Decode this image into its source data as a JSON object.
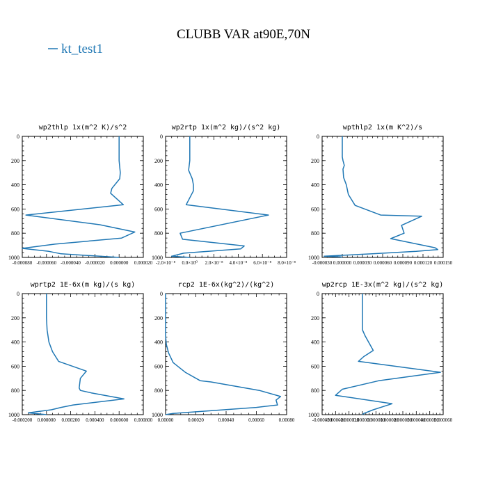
{
  "figure": {
    "title": "CLUBB VAR at90E,70N",
    "legend": "kt_test1",
    "line_color": "#1f77b4"
  },
  "chart_data": [
    {
      "type": "line",
      "title": "wp2thlp  1x(m^2 K)/s^2",
      "xlim": [
        -8e-05,
        2e-05
      ],
      "ylim": [
        1000,
        0
      ],
      "yticks": [
        0,
        200,
        400,
        600,
        800,
        1000
      ],
      "xtick_values": [
        -8e-05,
        -6e-05,
        -4e-05,
        -2e-05,
        0,
        2e-05
      ],
      "xtick_labels": [
        "-0.000080",
        "-0.000060",
        "-0.000040",
        "-0.000020",
        "0.000000",
        "0.000020"
      ],
      "series": [
        {
          "name": "kt_test1",
          "x": [
            0,
            0,
            0,
            1e-06,
            5e-07,
            -6e-06,
            -7e-06,
            3.5e-06,
            -7.7e-05,
            -1.6e-05,
            1.3e-05,
            2e-06,
            -5.3e-05,
            -8e-05,
            -5.8e-05,
            -4.8e-05,
            -1.6e-05,
            0
          ],
          "y": [
            0,
            100,
            200,
            300,
            350,
            430,
            470,
            565,
            650,
            730,
            790,
            840,
            890,
            925,
            950,
            970,
            990,
            1000
          ]
        }
      ]
    },
    {
      "type": "line",
      "title": "wp2rtp  1x(m^2 kg)/(s^2 kg)",
      "xlim": [
        -2e-08,
        8e-08
      ],
      "ylim": [
        1000,
        0
      ],
      "yticks": [
        0,
        200,
        400,
        600,
        800,
        1000
      ],
      "xtick_values": [
        -2e-08,
        0,
        2e-08,
        4e-08,
        6e-08,
        8e-08
      ],
      "xtick_labels": [
        "-2.0×10⁻⁸",
        "0.0×10⁰",
        "2.0×10⁻⁸",
        "4.0×10⁻⁸",
        "6.0×10⁻⁸",
        "8.0×10⁻⁸"
      ],
      "series": [
        {
          "name": "kt_test1",
          "x": [
            0,
            0,
            0,
            -1e-09,
            2e-09,
            3e-09,
            3e-09,
            -3e-09,
            6.5e-08,
            -8e-09,
            -6e-09,
            4.5e-08,
            4.2e-08,
            -5e-09,
            -1.5e-08,
            0
          ],
          "y": [
            0,
            100,
            200,
            280,
            350,
            400,
            450,
            565,
            650,
            800,
            850,
            905,
            930,
            965,
            990,
            1000
          ]
        }
      ]
    },
    {
      "type": "line",
      "title": "wpthlp2  1x(m K^2)/s",
      "xlim": [
        -3e-05,
        0.00015
      ],
      "ylim": [
        1000,
        0
      ],
      "yticks": [
        0,
        200,
        400,
        600,
        800,
        1000
      ],
      "xtick_values": [
        -3e-05,
        0,
        3e-05,
        6e-05,
        9e-05,
        0.00012,
        0.00015
      ],
      "xtick_labels": [
        "-0.000030",
        "0.000000",
        "0.000030",
        "0.000060",
        "0.000090",
        "0.000120",
        "0.000150"
      ],
      "series": [
        {
          "name": "kt_test1",
          "x": [
            0,
            0,
            0,
            1e-06,
            3e-06,
            1e-06,
            2e-06,
            6e-06,
            9e-06,
            1.9e-05,
            5.7e-05,
            0.000118,
            8.8e-05,
            9.2e-05,
            7.2e-05,
            0.000138,
            0.000142,
            0.00011,
            4.5e-05,
            -2.7e-05,
            -3e-06,
            0
          ],
          "y": [
            0,
            100,
            170,
            200,
            240,
            270,
            340,
            400,
            480,
            570,
            650,
            660,
            735,
            800,
            845,
            920,
            935,
            950,
            970,
            990,
            995,
            1000
          ]
        }
      ]
    },
    {
      "type": "line",
      "title": "wprtp2  1E-6x(m kg)/(s kg)",
      "xlim": [
        -0.0002,
        0.0008
      ],
      "ylim": [
        1000,
        0
      ],
      "yticks": [
        0,
        200,
        400,
        600,
        800,
        1000
      ],
      "xtick_values": [
        -0.0002,
        0,
        0.0002,
        0.0004,
        0.0006,
        0.0008
      ],
      "xtick_labels": [
        "-0.000200",
        "0.000000",
        "0.000200",
        "0.000400",
        "0.000600",
        "0.000800"
      ],
      "series": [
        {
          "name": "kt_test1",
          "x": [
            0,
            0,
            0,
            5e-06,
            2e-05,
            5e-05,
            0.0001,
            0.00033,
            0.00028,
            0.00027,
            0.00028,
            0.00037,
            0.00064,
            0.00022,
            0.00012,
            4e-05,
            -0.00015,
            0
          ],
          "y": [
            0,
            100,
            200,
            300,
            400,
            480,
            560,
            640,
            700,
            780,
            800,
            820,
            870,
            920,
            940,
            960,
            985,
            1000
          ]
        }
      ]
    },
    {
      "type": "line",
      "title": "rcp2  1E-6x(kg^2)/(kg^2)",
      "xlim": [
        0,
        0.0008
      ],
      "ylim": [
        1000,
        0
      ],
      "yticks": [
        0,
        200,
        400,
        600,
        800,
        1000
      ],
      "xtick_values": [
        0,
        0.0002,
        0.0004,
        0.0006,
        0.0008
      ],
      "xtick_labels": [
        "0.00000",
        "0.00020",
        "0.00040",
        "0.00060",
        "0.00080"
      ],
      "series": [
        {
          "name": "kt_test1",
          "x": [
            0,
            0,
            0,
            5e-06,
            2e-05,
            5e-05,
            0.00013,
            0.00023,
            0.0003,
            0.00062,
            0.00076,
            0.00073,
            0.00074,
            0.0006,
            5e-05,
            0
          ],
          "y": [
            0,
            200,
            350,
            420,
            490,
            570,
            650,
            720,
            730,
            800,
            850,
            880,
            920,
            940,
            990,
            1000
          ]
        }
      ]
    },
    {
      "type": "line",
      "title": "wp2rcp  1E-3x(m^2 kg)/(s^2 kg)",
      "xlim": [
        -3e-05,
        6e-05
      ],
      "ylim": [
        1000,
        0
      ],
      "yticks": [
        0,
        200,
        400,
        600,
        800,
        1000
      ],
      "xtick_values": [
        -3e-05,
        -2e-05,
        -1e-05,
        0,
        1e-05,
        2e-05,
        3e-05,
        4e-05,
        5e-05,
        6e-05
      ],
      "xtick_labels": [
        "-0.000030",
        "-0.000020",
        "-0.000010",
        "0.000000",
        "0.000010",
        "0.000020",
        "0.000030",
        "0.000040",
        "0.000050",
        "0.000060"
      ],
      "series": [
        {
          "name": "kt_test1",
          "x": [
            0,
            0,
            0,
            2e-06,
            8e-06,
            1e-06,
            -3e-06,
            5.8e-05,
            1.2e-05,
            -1.5e-05,
            -2e-05,
            2.2e-05,
            8e-06,
            1e-06,
            0
          ],
          "y": [
            0,
            100,
            300,
            350,
            470,
            520,
            560,
            650,
            720,
            790,
            840,
            910,
            960,
            990,
            1000
          ]
        }
      ]
    }
  ]
}
